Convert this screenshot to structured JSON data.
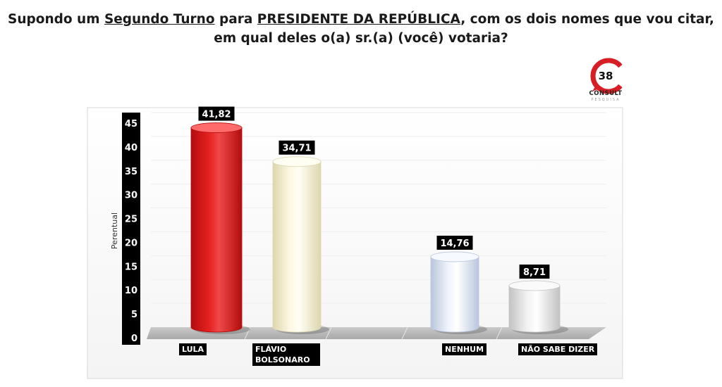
{
  "title": {
    "pre": "Supondo um ",
    "u1": "Segundo Turno",
    "mid": " para ",
    "u2": "PRESIDENTE DA REPÚBLICA",
    "post": ", com os dois nomes que vou citar,",
    "line2": "em qual deles o(a) sr.(a) (você) votaria?"
  },
  "logo": {
    "number": "38",
    "word": "CONSULT",
    "sub": "PESQUISA"
  },
  "chart_data": {
    "type": "bar",
    "categories": [
      "LULA",
      "FLÁVIO BOLSONARO",
      "NENHUM",
      "NÃO SABE DIZER"
    ],
    "values": [
      41.82,
      34.71,
      14.76,
      8.71
    ],
    "value_labels": [
      "41,82",
      "34,71",
      "14,76",
      "8,71"
    ],
    "ylabel": "Perentual",
    "ylim": [
      0,
      45
    ],
    "yticks": [
      "0",
      "5",
      "10",
      "15",
      "20",
      "25",
      "30",
      "35",
      "40",
      "45"
    ],
    "colors": [
      "#e01818",
      "#fbf6dc",
      "#eaf0fa",
      "#f0f0f0"
    ],
    "grid": true
  }
}
